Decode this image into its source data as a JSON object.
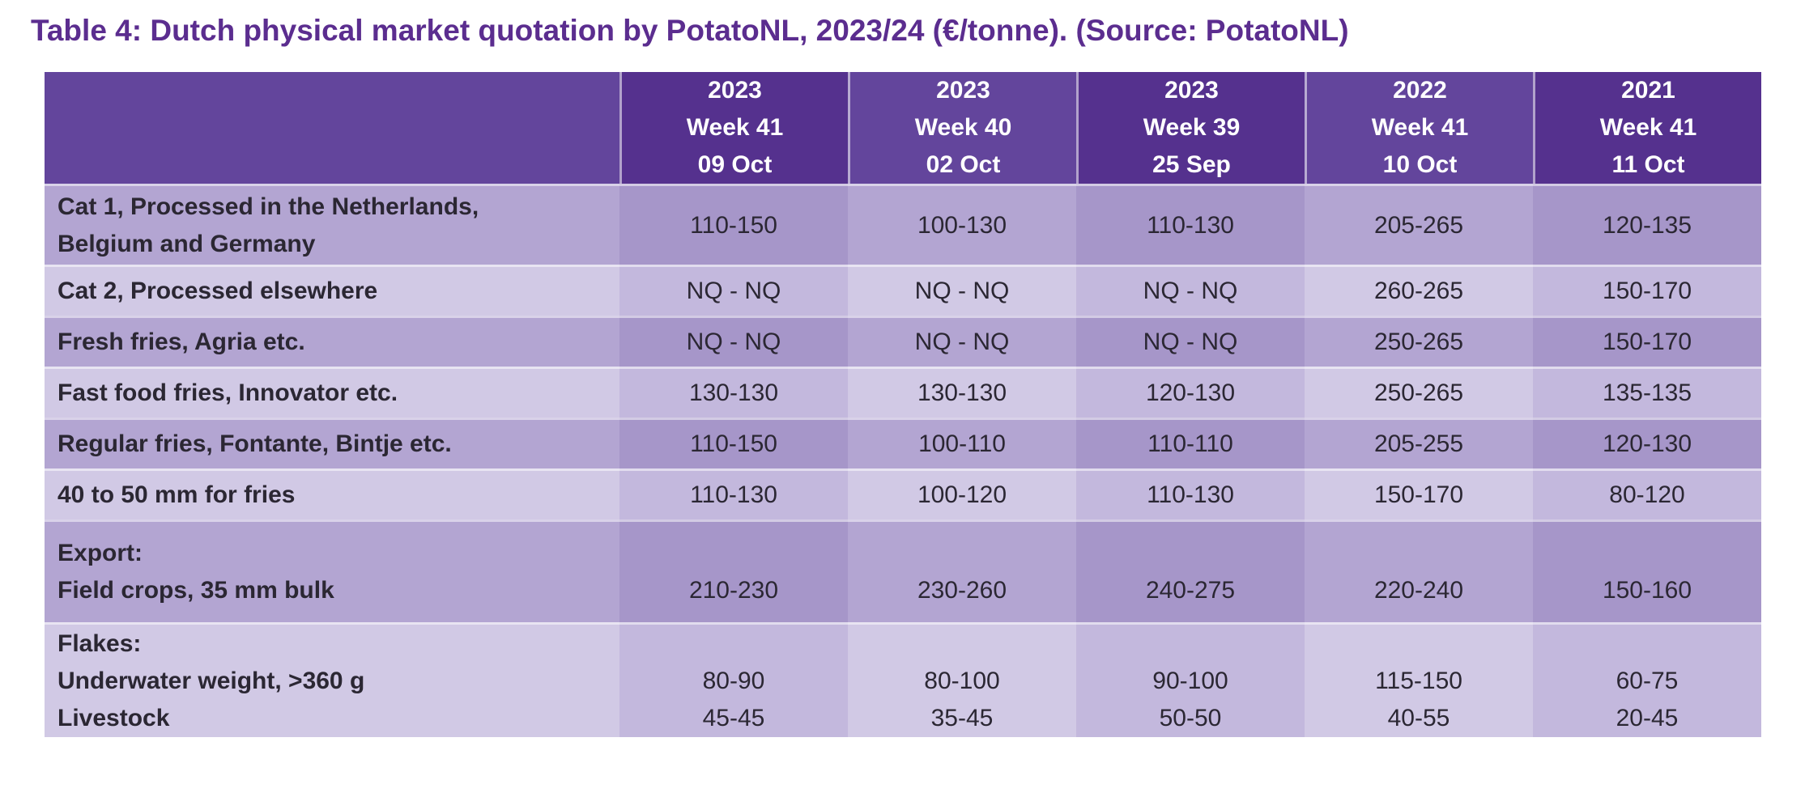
{
  "title": "Table 4: Dutch physical market quotation by PotatoNL, 2023/24 (€/tonne). (Source: PotatoNL)",
  "colors": {
    "title_purple": "#5b2d8f",
    "header_dark": "#55318e",
    "header_light": "#63459c",
    "body_dark_row": "#b3a5d2",
    "body_dark_row_dark_col": "#a696c9",
    "body_light_row": "#d1c9e5",
    "body_light_row_dark_col": "#c3b8dd",
    "body_text": "#2b2733",
    "header_text": "#ffffff"
  },
  "table": {
    "unit": "€/tonne",
    "columns": [
      {
        "lines": [
          "2023",
          "Week 41",
          "09 Oct"
        ]
      },
      {
        "lines": [
          "2023",
          "Week 40",
          "02 Oct"
        ]
      },
      {
        "lines": [
          "2023",
          "Week 39",
          "25 Sep"
        ]
      },
      {
        "lines": [
          "2022",
          "Week 41",
          "10 Oct"
        ]
      },
      {
        "lines": [
          "2021",
          "Week 41",
          "11 Oct"
        ]
      }
    ],
    "rows": [
      {
        "label_lines": [
          "Cat 1, Processed in the Netherlands,",
          "Belgium and Germany"
        ],
        "values": [
          [
            "110-150"
          ],
          [
            "100-130"
          ],
          [
            "110-130"
          ],
          [
            "205-265"
          ],
          [
            "120-135"
          ]
        ]
      },
      {
        "label_lines": [
          "Cat 2, Processed elsewhere"
        ],
        "values": [
          [
            "NQ - NQ"
          ],
          [
            "NQ - NQ"
          ],
          [
            "NQ - NQ"
          ],
          [
            "260-265"
          ],
          [
            "150-170"
          ]
        ]
      },
      {
        "label_lines": [
          "Fresh fries, Agria etc."
        ],
        "values": [
          [
            "NQ - NQ"
          ],
          [
            "NQ - NQ"
          ],
          [
            "NQ - NQ"
          ],
          [
            "250-265"
          ],
          [
            "150-170"
          ]
        ]
      },
      {
        "label_lines": [
          "Fast food fries, Innovator etc."
        ],
        "values": [
          [
            "130-130"
          ],
          [
            "130-130"
          ],
          [
            "120-130"
          ],
          [
            "250-265"
          ],
          [
            "135-135"
          ]
        ]
      },
      {
        "label_lines": [
          "Regular fries, Fontante, Bintje etc."
        ],
        "values": [
          [
            "110-150"
          ],
          [
            "100-110"
          ],
          [
            "110-110"
          ],
          [
            "205-255"
          ],
          [
            "120-130"
          ]
        ]
      },
      {
        "label_lines": [
          "40 to 50 mm for fries"
        ],
        "values": [
          [
            "110-130"
          ],
          [
            "100-120"
          ],
          [
            "110-130"
          ],
          [
            "150-170"
          ],
          [
            "80-120"
          ]
        ]
      },
      {
        "label_lines": [
          "Export:",
          "Field crops, 35 mm bulk"
        ],
        "values": [
          [
            "",
            "210-230"
          ],
          [
            "",
            "230-260"
          ],
          [
            "",
            "240-275"
          ],
          [
            "",
            "220-240"
          ],
          [
            "",
            "150-160"
          ]
        ]
      },
      {
        "label_lines": [
          "Flakes:",
          "Underwater weight, >360 g",
          "Livestock"
        ],
        "values": [
          [
            "",
            "80-90",
            "45-45"
          ],
          [
            "",
            "80-100",
            "35-45"
          ],
          [
            "",
            "90-100",
            "50-50"
          ],
          [
            "",
            "115-150",
            "40-55"
          ],
          [
            "",
            "60-75",
            "20-45"
          ]
        ]
      }
    ]
  }
}
